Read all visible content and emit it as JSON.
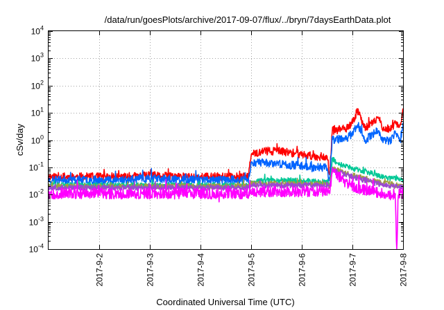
{
  "chart_data": {
    "type": "line",
    "title": "/data/run/goesPlots/archive/2017-09-07/flux/../bryn/7daysEarthData.plot",
    "xlabel": "Coordinated Universal Time (UTC)",
    "ylabel": "cSv/day",
    "yscale": "log",
    "ylim": [
      0.0001,
      10000
    ],
    "xlim": [
      0,
      7
    ],
    "x_ticks": [
      {
        "x": 1,
        "label": "2017-9-2"
      },
      {
        "x": 2,
        "label": "2017-9-3"
      },
      {
        "x": 3,
        "label": "2017-9-4"
      },
      {
        "x": 4,
        "label": "2017-9-5"
      },
      {
        "x": 5,
        "label": "2017-9-6"
      },
      {
        "x": 6,
        "label": "2017-9-7"
      },
      {
        "x": 7,
        "label": "2017-9-8"
      }
    ],
    "y_ticks": [
      {
        "v": 0.0001,
        "base": "10",
        "exp": "-4"
      },
      {
        "v": 0.001,
        "base": "10",
        "exp": "-3"
      },
      {
        "v": 0.01,
        "base": "10",
        "exp": "-2"
      },
      {
        "v": 0.1,
        "base": "10",
        "exp": "-1"
      },
      {
        "v": 1,
        "base": "10",
        "exp": "0"
      },
      {
        "v": 10,
        "base": "10",
        "exp": "1"
      },
      {
        "v": 100,
        "base": "10",
        "exp": "2"
      },
      {
        "v": 1000,
        "base": "10",
        "exp": "3"
      },
      {
        "v": 10000,
        "base": "10",
        "exp": "4"
      }
    ],
    "grid": true,
    "legend": "none",
    "series": [
      {
        "color": "#ff0000",
        "x": [
          0,
          0.5,
          1,
          1.5,
          2,
          2.5,
          3,
          3.5,
          3.95,
          4.0,
          4.25,
          4.5,
          4.75,
          5.0,
          5.25,
          5.5,
          5.55,
          5.6,
          5.75,
          5.9,
          6.0,
          6.1,
          6.25,
          6.4,
          6.5,
          6.6,
          6.75,
          6.85,
          6.95,
          7.0
        ],
        "values": [
          0.045,
          0.045,
          0.045,
          0.045,
          0.05,
          0.045,
          0.045,
          0.045,
          0.045,
          0.3,
          0.4,
          0.4,
          0.35,
          0.3,
          0.25,
          0.25,
          0.04,
          2.2,
          2.5,
          2.5,
          4.5,
          12,
          3,
          4,
          7,
          3,
          2.5,
          4.5,
          3,
          20
        ],
        "noise": 0.15,
        "seed": 11
      },
      {
        "color": "#0064ff",
        "x": [
          0,
          0.5,
          1,
          1.5,
          2,
          2.5,
          3,
          3.5,
          3.95,
          4.0,
          4.25,
          4.5,
          4.75,
          5.0,
          5.25,
          5.5,
          5.55,
          5.6,
          5.75,
          5.9,
          6.0,
          6.1,
          6.25,
          6.4,
          6.5,
          6.6,
          6.75,
          6.85,
          6.95,
          7.0
        ],
        "values": [
          0.035,
          0.035,
          0.035,
          0.035,
          0.04,
          0.035,
          0.035,
          0.035,
          0.035,
          0.15,
          0.15,
          0.14,
          0.12,
          0.12,
          0.1,
          0.1,
          0.03,
          1.0,
          1.1,
          1.2,
          1.8,
          4.0,
          1.0,
          1.6,
          2.5,
          1.0,
          0.9,
          1.8,
          0.9,
          5.0
        ],
        "noise": 0.15,
        "seed": 23
      },
      {
        "color": "#00c896",
        "x": [
          0,
          0.5,
          1,
          1.5,
          2,
          2.5,
          3,
          3.5,
          3.95,
          4.0,
          4.5,
          5.0,
          5.5,
          5.55,
          5.6,
          5.75,
          6.0,
          6.25,
          6.5,
          6.75,
          7.0
        ],
        "values": [
          0.022,
          0.022,
          0.022,
          0.022,
          0.022,
          0.022,
          0.022,
          0.022,
          0.022,
          0.03,
          0.035,
          0.032,
          0.03,
          0.022,
          0.2,
          0.13,
          0.09,
          0.07,
          0.05,
          0.04,
          0.035
        ],
        "noise": 0.1,
        "seed": 37
      },
      {
        "color": "#a0a040",
        "x": [
          0,
          1,
          2,
          3,
          3.95,
          4.0,
          5.0,
          5.5,
          5.55,
          5.6,
          6.0,
          6.5,
          7.0
        ],
        "values": [
          0.02,
          0.02,
          0.02,
          0.02,
          0.02,
          0.025,
          0.025,
          0.025,
          0.02,
          0.09,
          0.05,
          0.03,
          0.02
        ],
        "noise": 0.1,
        "seed": 41
      },
      {
        "color": "#9a4ad0",
        "x": [
          0,
          1,
          2,
          3,
          3.95,
          4.0,
          5.0,
          5.5,
          5.55,
          5.6,
          6.0,
          6.5,
          7.0
        ],
        "values": [
          0.018,
          0.018,
          0.018,
          0.018,
          0.018,
          0.022,
          0.022,
          0.022,
          0.018,
          0.08,
          0.045,
          0.025,
          0.018
        ],
        "noise": 0.1,
        "seed": 53
      },
      {
        "color": "#ff00ff",
        "x": [
          0,
          0.5,
          1,
          1.5,
          2,
          2.5,
          3,
          3.5,
          3.95,
          4.0,
          4.5,
          5.0,
          5.5,
          5.55,
          5.6,
          5.75,
          6.0,
          6.25,
          6.5,
          6.75,
          6.85,
          6.87,
          6.88,
          6.9,
          7.0
        ],
        "values": [
          0.011,
          0.011,
          0.011,
          0.011,
          0.011,
          0.011,
          0.011,
          0.011,
          0.011,
          0.013,
          0.013,
          0.013,
          0.013,
          0.011,
          0.08,
          0.04,
          0.02,
          0.015,
          0.012,
          0.01,
          0.01,
          0.0001,
          0.0001,
          0.01,
          0.01
        ],
        "noise": 0.2,
        "seed": 67
      }
    ]
  }
}
